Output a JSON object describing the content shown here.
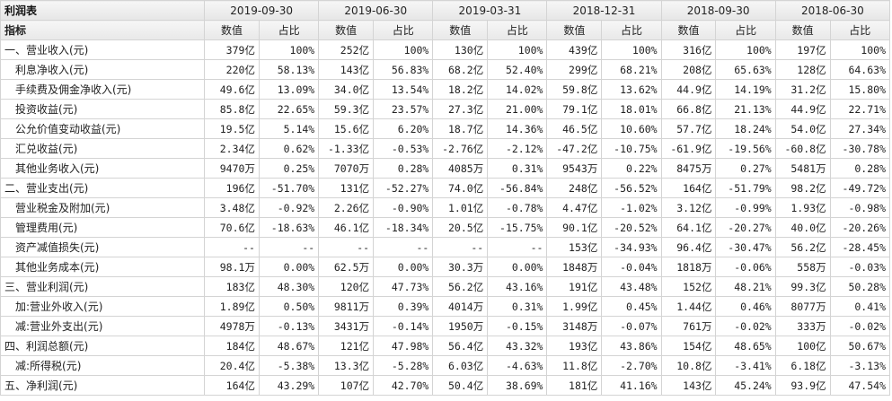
{
  "title": "利润表",
  "indicator_header": "指标",
  "value_header": "数值",
  "pct_header": "占比",
  "dates": [
    "2019-09-30",
    "2019-06-30",
    "2019-03-31",
    "2018-12-31",
    "2018-09-30",
    "2018-06-30"
  ],
  "rows": [
    {
      "label": "一、营业收入(元)",
      "level": 1,
      "cells": [
        [
          "379亿",
          "100%"
        ],
        [
          "252亿",
          "100%"
        ],
        [
          "130亿",
          "100%"
        ],
        [
          "439亿",
          "100%"
        ],
        [
          "316亿",
          "100%"
        ],
        [
          "197亿",
          "100%"
        ]
      ]
    },
    {
      "label": "利息净收入(元)",
      "level": 2,
      "cells": [
        [
          "220亿",
          "58.13%"
        ],
        [
          "143亿",
          "56.83%"
        ],
        [
          "68.2亿",
          "52.40%"
        ],
        [
          "299亿",
          "68.21%"
        ],
        [
          "208亿",
          "65.63%"
        ],
        [
          "128亿",
          "64.63%"
        ]
      ]
    },
    {
      "label": "手续费及佣金净收入(元)",
      "level": 2,
      "cells": [
        [
          "49.6亿",
          "13.09%"
        ],
        [
          "34.0亿",
          "13.54%"
        ],
        [
          "18.2亿",
          "14.02%"
        ],
        [
          "59.8亿",
          "13.62%"
        ],
        [
          "44.9亿",
          "14.19%"
        ],
        [
          "31.2亿",
          "15.80%"
        ]
      ]
    },
    {
      "label": "投资收益(元)",
      "level": 2,
      "cells": [
        [
          "85.8亿",
          "22.65%"
        ],
        [
          "59.3亿",
          "23.57%"
        ],
        [
          "27.3亿",
          "21.00%"
        ],
        [
          "79.1亿",
          "18.01%"
        ],
        [
          "66.8亿",
          "21.13%"
        ],
        [
          "44.9亿",
          "22.71%"
        ]
      ]
    },
    {
      "label": "公允价值变动收益(元)",
      "level": 2,
      "cells": [
        [
          "19.5亿",
          "5.14%"
        ],
        [
          "15.6亿",
          "6.20%"
        ],
        [
          "18.7亿",
          "14.36%"
        ],
        [
          "46.5亿",
          "10.60%"
        ],
        [
          "57.7亿",
          "18.24%"
        ],
        [
          "54.0亿",
          "27.34%"
        ]
      ]
    },
    {
      "label": "汇兑收益(元)",
      "level": 2,
      "cells": [
        [
          "2.34亿",
          "0.62%"
        ],
        [
          "-1.33亿",
          "-0.53%"
        ],
        [
          "-2.76亿",
          "-2.12%"
        ],
        [
          "-47.2亿",
          "-10.75%"
        ],
        [
          "-61.9亿",
          "-19.56%"
        ],
        [
          "-60.8亿",
          "-30.78%"
        ]
      ]
    },
    {
      "label": "其他业务收入(元)",
      "level": 2,
      "cells": [
        [
          "9470万",
          "0.25%"
        ],
        [
          "7070万",
          "0.28%"
        ],
        [
          "4085万",
          "0.31%"
        ],
        [
          "9543万",
          "0.22%"
        ],
        [
          "8475万",
          "0.27%"
        ],
        [
          "5481万",
          "0.28%"
        ]
      ]
    },
    {
      "label": "二、营业支出(元)",
      "level": 1,
      "cells": [
        [
          "196亿",
          "-51.70%"
        ],
        [
          "131亿",
          "-52.27%"
        ],
        [
          "74.0亿",
          "-56.84%"
        ],
        [
          "248亿",
          "-56.52%"
        ],
        [
          "164亿",
          "-51.79%"
        ],
        [
          "98.2亿",
          "-49.72%"
        ]
      ]
    },
    {
      "label": "营业税金及附加(元)",
      "level": 2,
      "cells": [
        [
          "3.48亿",
          "-0.92%"
        ],
        [
          "2.26亿",
          "-0.90%"
        ],
        [
          "1.01亿",
          "-0.78%"
        ],
        [
          "4.47亿",
          "-1.02%"
        ],
        [
          "3.12亿",
          "-0.99%"
        ],
        [
          "1.93亿",
          "-0.98%"
        ]
      ]
    },
    {
      "label": "管理费用(元)",
      "level": 2,
      "cells": [
        [
          "70.6亿",
          "-18.63%"
        ],
        [
          "46.1亿",
          "-18.34%"
        ],
        [
          "20.5亿",
          "-15.75%"
        ],
        [
          "90.1亿",
          "-20.52%"
        ],
        [
          "64.1亿",
          "-20.27%"
        ],
        [
          "40.0亿",
          "-20.26%"
        ]
      ]
    },
    {
      "label": "资产减值损失(元)",
      "level": 2,
      "cells": [
        [
          "--",
          "--"
        ],
        [
          "--",
          "--"
        ],
        [
          "--",
          "--"
        ],
        [
          "153亿",
          "-34.93%"
        ],
        [
          "96.4亿",
          "-30.47%"
        ],
        [
          "56.2亿",
          "-28.45%"
        ]
      ]
    },
    {
      "label": "其他业务成本(元)",
      "level": 2,
      "cells": [
        [
          "98.1万",
          "0.00%"
        ],
        [
          "62.5万",
          "0.00%"
        ],
        [
          "30.3万",
          "0.00%"
        ],
        [
          "1848万",
          "-0.04%"
        ],
        [
          "1818万",
          "-0.06%"
        ],
        [
          "558万",
          "-0.03%"
        ]
      ]
    },
    {
      "label": "三、营业利润(元)",
      "level": 1,
      "cells": [
        [
          "183亿",
          "48.30%"
        ],
        [
          "120亿",
          "47.73%"
        ],
        [
          "56.2亿",
          "43.16%"
        ],
        [
          "191亿",
          "43.48%"
        ],
        [
          "152亿",
          "48.21%"
        ],
        [
          "99.3亿",
          "50.28%"
        ]
      ]
    },
    {
      "label": "加:营业外收入(元)",
      "level": 2,
      "cells": [
        [
          "1.89亿",
          "0.50%"
        ],
        [
          "9811万",
          "0.39%"
        ],
        [
          "4014万",
          "0.31%"
        ],
        [
          "1.99亿",
          "0.45%"
        ],
        [
          "1.44亿",
          "0.46%"
        ],
        [
          "8077万",
          "0.41%"
        ]
      ]
    },
    {
      "label": "减:营业外支出(元)",
      "level": 2,
      "cells": [
        [
          "4978万",
          "-0.13%"
        ],
        [
          "3431万",
          "-0.14%"
        ],
        [
          "1950万",
          "-0.15%"
        ],
        [
          "3148万",
          "-0.07%"
        ],
        [
          "761万",
          "-0.02%"
        ],
        [
          "333万",
          "-0.02%"
        ]
      ]
    },
    {
      "label": "四、利润总额(元)",
      "level": 1,
      "cells": [
        [
          "184亿",
          "48.67%"
        ],
        [
          "121亿",
          "47.98%"
        ],
        [
          "56.4亿",
          "43.32%"
        ],
        [
          "193亿",
          "43.86%"
        ],
        [
          "154亿",
          "48.65%"
        ],
        [
          "100亿",
          "50.67%"
        ]
      ]
    },
    {
      "label": "减:所得税(元)",
      "level": 2,
      "cells": [
        [
          "20.4亿",
          "-5.38%"
        ],
        [
          "13.3亿",
          "-5.28%"
        ],
        [
          "6.03亿",
          "-4.63%"
        ],
        [
          "11.8亿",
          "-2.70%"
        ],
        [
          "10.8亿",
          "-3.41%"
        ],
        [
          "6.18亿",
          "-3.13%"
        ]
      ]
    },
    {
      "label": "五、净利润(元)",
      "level": 1,
      "cells": [
        [
          "164亿",
          "43.29%"
        ],
        [
          "107亿",
          "42.70%"
        ],
        [
          "50.4亿",
          "38.69%"
        ],
        [
          "181亿",
          "41.16%"
        ],
        [
          "143亿",
          "45.24%"
        ],
        [
          "93.9亿",
          "47.54%"
        ]
      ]
    }
  ]
}
